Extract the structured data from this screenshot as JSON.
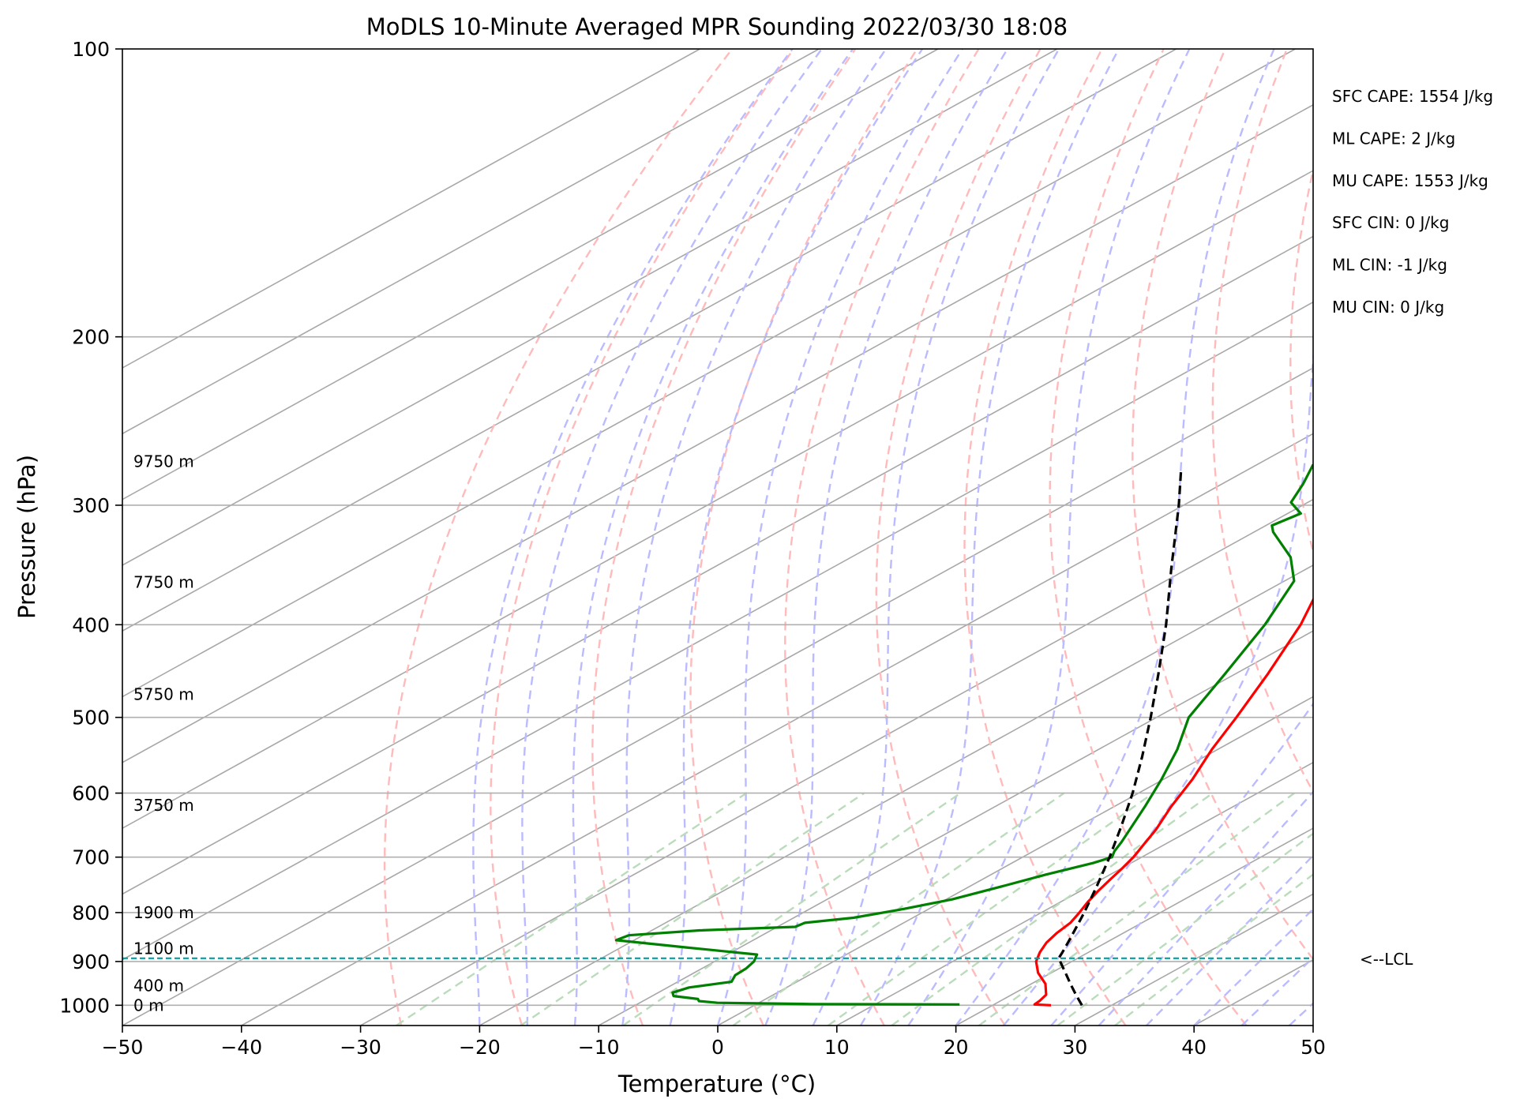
{
  "chart_data": {
    "type": "line",
    "title": "MoDLS 10-Minute Averaged MPR Sounding 2022/03/30 18:08",
    "xlabel": "Temperature (°C)",
    "ylabel": "Pressure (hPa)",
    "xlim": [
      -50,
      50
    ],
    "ylim": [
      1050,
      100
    ],
    "y_scale": "log",
    "skew": "skew-T",
    "grid": true,
    "x_ticks": [
      -50,
      -40,
      -30,
      -20,
      -10,
      0,
      10,
      20,
      30,
      40,
      50
    ],
    "x_tick_labels": [
      "−50",
      "−40",
      "−30",
      "−20",
      "−10",
      "0",
      "10",
      "20",
      "30",
      "40",
      "50"
    ],
    "y_ticks": [
      100,
      200,
      300,
      400,
      500,
      600,
      700,
      800,
      900,
      1000
    ],
    "y_tick_labels": [
      "100",
      "200",
      "300",
      "400",
      "500",
      "600",
      "700",
      "800",
      "900",
      "1000"
    ],
    "series": [
      {
        "name": "",
        "role": "temperature",
        "color": "#ff0000",
        "points": [
          [
            1000,
            24.9
          ],
          [
            998,
            23.4
          ],
          [
            990,
            23.3
          ],
          [
            975,
            22.9
          ],
          [
            950,
            21.2
          ],
          [
            925,
            18.9
          ],
          [
            900,
            17.0
          ],
          [
            880,
            15.9
          ],
          [
            860,
            15.0
          ],
          [
            840,
            14.4
          ],
          [
            820,
            14.0
          ],
          [
            800,
            13.2
          ],
          [
            780,
            12.3
          ],
          [
            760,
            11.5
          ],
          [
            740,
            10.8
          ],
          [
            720,
            10.1
          ],
          [
            700,
            9.3
          ],
          [
            680,
            8.3
          ],
          [
            655,
            7.0
          ],
          [
            620,
            4.8
          ],
          [
            580,
            2.4
          ],
          [
            540,
            -0.5
          ],
          [
            500,
            -3.3
          ],
          [
            450,
            -7.3
          ],
          [
            400,
            -12.0
          ],
          [
            360,
            -16.8
          ],
          [
            330,
            -21.0
          ],
          [
            310,
            -24.3
          ],
          [
            290,
            -27.7
          ],
          [
            272,
            -31.2
          ]
        ]
      },
      {
        "name": "",
        "role": "dewpoint",
        "color": "#008000",
        "points": [
          [
            998,
            17.1
          ],
          [
            997,
            4.6
          ],
          [
            994,
            -3.5
          ],
          [
            990,
            -5.3
          ],
          [
            985,
            -5.7
          ],
          [
            978,
            -8.2
          ],
          [
            970,
            -8.8
          ],
          [
            958,
            -8.2
          ],
          [
            945,
            -5.5
          ],
          [
            930,
            -6.2
          ],
          [
            915,
            -6.3
          ],
          [
            900,
            -6.7
          ],
          [
            885,
            -7.5
          ],
          [
            870,
            -14.5
          ],
          [
            855,
            -21.5
          ],
          [
            845,
            -21.2
          ],
          [
            835,
            -16.0
          ],
          [
            828,
            -8.5
          ],
          [
            820,
            -8.3
          ],
          [
            810,
            -5.0
          ],
          [
            795,
            -2.4
          ],
          [
            775,
            0.5
          ],
          [
            750,
            2.8
          ],
          [
            730,
            4.6
          ],
          [
            710,
            6.8
          ],
          [
            700,
            7.5
          ],
          [
            690,
            6.8
          ],
          [
            675,
            6.0
          ],
          [
            655,
            4.8
          ],
          [
            620,
            2.6
          ],
          [
            580,
            -0.2
          ],
          [
            540,
            -3.4
          ],
          [
            500,
            -7.3
          ],
          [
            450,
            -10.9
          ],
          [
            400,
            -15.0
          ],
          [
            360,
            -19.2
          ],
          [
            340,
            -23.1
          ],
          [
            320,
            -28.4
          ],
          [
            315,
            -29.5
          ],
          [
            306,
            -28.9
          ],
          [
            298,
            -31.4
          ],
          [
            285,
            -33.2
          ],
          [
            272,
            -35.3
          ]
        ]
      },
      {
        "name": "",
        "role": "parcel",
        "color": "#000000",
        "points": [
          [
            1000,
            27.5
          ],
          [
            975,
            25.4
          ],
          [
            950,
            23.3
          ],
          [
            925,
            21.2
          ],
          [
            893,
            18.4
          ],
          [
            880,
            17.8
          ],
          [
            850,
            16.3
          ],
          [
            800,
            13.6
          ],
          [
            750,
            10.6
          ],
          [
            700,
            7.3
          ],
          [
            650,
            3.6
          ],
          [
            600,
            -0.5
          ],
          [
            550,
            -5.2
          ],
          [
            500,
            -10.5
          ],
          [
            450,
            -16.5
          ],
          [
            400,
            -23.3
          ],
          [
            350,
            -31.3
          ],
          [
            300,
            -40.4
          ],
          [
            275,
            -45.7
          ]
        ]
      }
    ],
    "lcl": {
      "pressure": 893,
      "label": "<--LCL",
      "color": "#00a0a0"
    },
    "height_labels": [
      {
        "pressure": 1000,
        "label": "0 m"
      },
      {
        "pressure": 954,
        "label": "400 m"
      },
      {
        "pressure": 872,
        "label": "1100 m"
      },
      {
        "pressure": 800,
        "label": "1900 m"
      },
      {
        "pressure": 618,
        "label": "3750 m"
      },
      {
        "pressure": 473,
        "label": "5750 m"
      },
      {
        "pressure": 361,
        "label": "7750 m"
      },
      {
        "pressure": 270,
        "label": "9750 m"
      }
    ],
    "annotations": [
      "SFC CAPE: 1554 J/kg",
      "ML CAPE: 2 J/kg",
      "MU CAPE: 1553 J/kg",
      "SFC CIN: 0 J/kg",
      "ML CIN: -1 J/kg",
      "MU CIN: 0 J/kg"
    ],
    "reference_lines": {
      "isotherms": {
        "color": "#a8a8a8",
        "style": "solid"
      },
      "dry_adiabats": {
        "color": "#ffbbbb",
        "style": "dashed"
      },
      "moist_adiabats": {
        "color": "#bbbbff",
        "style": "dashed"
      },
      "mixing_ratio_lines": {
        "color": "#bbdcbb",
        "style": "dashed"
      }
    }
  }
}
